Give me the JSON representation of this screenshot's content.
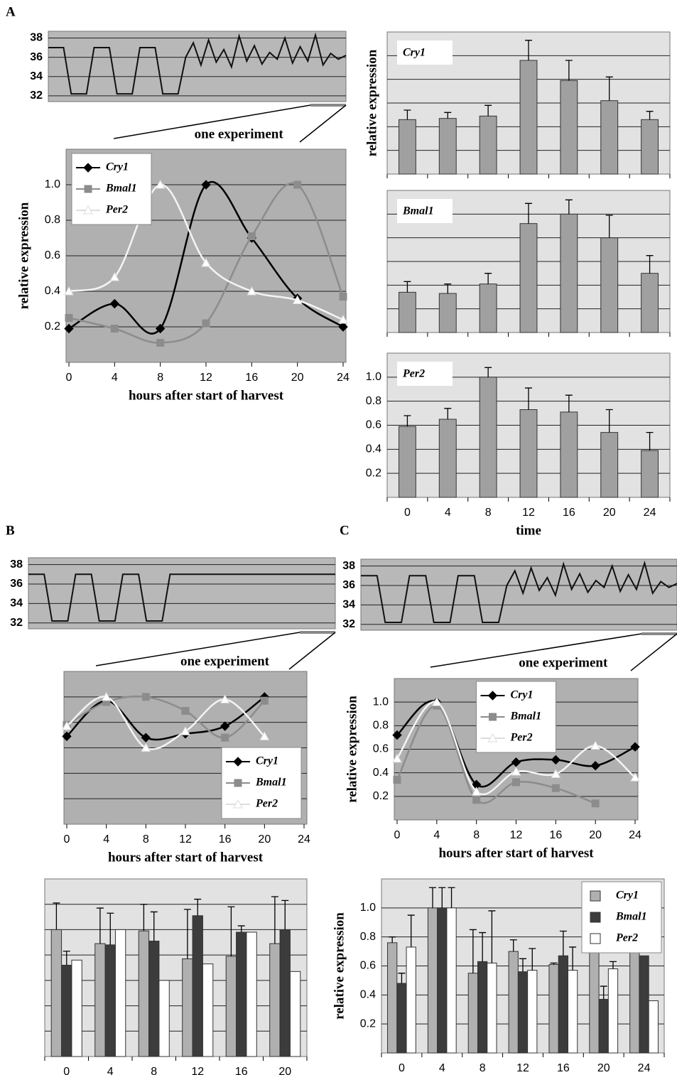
{
  "panel_labels": [
    "A",
    "B",
    "C"
  ],
  "chart_data": [
    {
      "type": "line",
      "values": [
        37,
        37,
        37,
        32.2,
        32.2,
        32.2,
        37,
        37,
        37,
        32.2,
        32.2,
        32.2,
        37,
        37,
        37,
        32.2,
        32.2,
        32.2,
        36,
        37.5,
        35.2,
        37.8,
        35.5,
        36.8,
        35,
        38.2,
        35.6,
        37.2,
        35.3,
        36.5,
        35.8,
        38,
        35.4,
        37.1,
        35.6,
        38.3,
        35.2,
        36.4,
        35.8,
        36.2
      ],
      "color": "#111111",
      "ylim": [
        31.4,
        38.7
      ],
      "yticks": [
        32,
        34,
        36,
        38
      ],
      "grid": true,
      "annotation": "one experiment"
    },
    {
      "type": "line",
      "x": [
        0,
        4,
        8,
        12,
        16,
        20,
        24
      ],
      "xlim": [
        0,
        24
      ],
      "xticks": [
        0,
        4,
        8,
        12,
        16,
        20,
        24
      ],
      "ylim": [
        0,
        1.2
      ],
      "yticks": [
        0.2,
        0.4,
        0.6,
        0.8,
        {
          "value": 1,
          "label": "1.0"
        }
      ],
      "grid": true,
      "xlabel": "hours after start of harvest",
      "ylabel": "relative expression",
      "legend": "upper left",
      "series": [
        {
          "name": "Cry1",
          "color": "#000000",
          "marker": "diamond",
          "values": [
            0.19,
            0.33,
            0.19,
            1.0,
            0.7,
            0.36,
            0.2
          ]
        },
        {
          "name": "Bmal1",
          "color": "#8c8c8c",
          "marker": "square",
          "values": [
            0.25,
            0.19,
            0.11,
            0.22,
            0.71,
            1.0,
            0.37
          ]
        },
        {
          "name": "Per2",
          "color": "#ffffff",
          "marker": "triangle",
          "values": [
            0.4,
            0.48,
            1.0,
            0.56,
            0.4,
            0.35,
            0.24
          ]
        }
      ]
    },
    {
      "type": "bar",
      "title": "Cry1",
      "categories": [
        null,
        null,
        null,
        null,
        null,
        null,
        null
      ],
      "values": [
        0.46,
        0.47,
        0.49,
        0.96,
        0.79,
        0.62,
        0.46
      ],
      "errors": [
        0.08,
        0.05,
        0.09,
        0.17,
        0.17,
        0.2,
        0.07
      ],
      "color": "#a0a0a0",
      "ylim": [
        0,
        1.2
      ],
      "yticks": [
        0.2,
        0.4,
        0.6,
        0.8,
        1
      ],
      "ytick_labels": false,
      "grid": true,
      "ylabel": "relative expression"
    },
    {
      "type": "bar",
      "title": "Bmal1",
      "categories": [
        null,
        null,
        null,
        null,
        null,
        null,
        null
      ],
      "values": [
        0.34,
        0.33,
        0.41,
        0.92,
        1.0,
        0.8,
        0.5
      ],
      "errors": [
        0.09,
        0.08,
        0.09,
        0.17,
        0.12,
        0.19,
        0.15
      ],
      "color": "#a0a0a0",
      "ylim": [
        0,
        1.2
      ],
      "yticks": [
        0.2,
        0.4,
        0.6,
        0.8,
        1
      ],
      "ytick_labels": false,
      "grid": true
    },
    {
      "type": "bar",
      "title": "Per2",
      "categories": [
        "0",
        "4",
        "8",
        "12",
        "16",
        "20",
        "24"
      ],
      "values": [
        0.59,
        0.65,
        1.0,
        0.73,
        0.71,
        0.54,
        0.39
      ],
      "errors": [
        0.09,
        0.09,
        0.08,
        0.18,
        0.14,
        0.19,
        0.15
      ],
      "color": "#a0a0a0",
      "ylim": [
        0,
        1.2
      ],
      "yticks": [
        0.2,
        0.4,
        0.6,
        0.8,
        {
          "value": 1,
          "label": "1.0"
        }
      ],
      "grid": true,
      "xlabel": "time"
    },
    {
      "type": "line",
      "values": [
        37,
        37,
        37,
        32.2,
        32.2,
        32.2,
        37,
        37,
        37,
        32.2,
        32.2,
        32.2,
        37,
        37,
        37,
        32.2,
        32.2,
        32.2,
        37,
        37,
        37,
        37,
        37,
        37,
        37,
        37,
        37,
        37,
        37,
        37,
        37,
        37,
        37,
        37,
        37,
        37,
        37,
        37,
        37,
        37
      ],
      "color": "#111111",
      "ylim": [
        31.4,
        38.7
      ],
      "yticks": [
        32,
        34,
        36,
        38
      ],
      "grid": true,
      "annotation": "one experiment"
    },
    {
      "type": "line",
      "x": [
        0,
        4,
        8,
        12,
        16,
        20
      ],
      "xlim": [
        0,
        24
      ],
      "xticks": [
        0,
        4,
        8,
        12,
        16,
        20,
        24
      ],
      "ylim": [
        0,
        1.2
      ],
      "yticks": [
        0.2,
        0.4,
        0.6,
        0.8,
        1
      ],
      "ytick_labels": false,
      "grid": true,
      "xlabel": "hours after start of harvest",
      "legend": "lower right",
      "series": [
        {
          "name": "Cry1",
          "color": "#000000",
          "marker": "diamond",
          "values": [
            0.69,
            0.97,
            0.68,
            0.71,
            0.77,
            1.0
          ]
        },
        {
          "name": "Bmal1",
          "color": "#8c8c8c",
          "marker": "square",
          "values": [
            0.78,
            0.96,
            1.0,
            0.89,
            0.68,
            0.97
          ]
        },
        {
          "name": "Per2",
          "color": "#ffffff",
          "marker": "triangle",
          "values": [
            0.77,
            1.0,
            0.6,
            0.73,
            0.98,
            0.69
          ]
        }
      ]
    },
    {
      "type": "bar",
      "categories": [
        "0",
        "4",
        "8",
        "12",
        "16",
        "20"
      ],
      "ylim": [
        0,
        1.4
      ],
      "yticks": [
        0.2,
        0.4,
        0.6,
        0.8,
        1,
        1.2
      ],
      "ytick_labels": false,
      "grid": true,
      "series": [
        {
          "name": "Cry1",
          "color": "#b0b0b0",
          "values": [
            1.0,
            0.89,
            0.99,
            0.77,
            0.79,
            0.89
          ],
          "errors": [
            0.21,
            0.28,
            0.21,
            0.39,
            0.39,
            0.37
          ]
        },
        {
          "name": "Bmal1",
          "color": "#3c3c3c",
          "values": [
            0.72,
            0.88,
            0.91,
            1.11,
            0.98,
            1.0
          ],
          "errors": [
            0.11,
            0.25,
            0.23,
            0.13,
            0.05,
            0.23
          ]
        },
        {
          "name": "Per2",
          "color": "#ffffff",
          "values": [
            0.76,
            1.0,
            0.6,
            0.73,
            0.98,
            0.67
          ]
        }
      ]
    },
    {
      "type": "line",
      "values": [
        37,
        37,
        37,
        32.2,
        32.2,
        32.2,
        37,
        37,
        37,
        32.2,
        32.2,
        32.2,
        37,
        37,
        37,
        32.2,
        32.2,
        32.2,
        36,
        37.5,
        35.2,
        37.8,
        35.5,
        36.8,
        35,
        38.2,
        35.6,
        37.2,
        35.3,
        36.5,
        35.8,
        38,
        35.4,
        37.1,
        35.6,
        38.3,
        35.2,
        36.4,
        35.8,
        36.2
      ],
      "color": "#111111",
      "ylim": [
        31.4,
        38.7
      ],
      "yticks": [
        32,
        34,
        36,
        38
      ],
      "grid": true,
      "annotation": "one experiment"
    },
    {
      "type": "line",
      "x": [
        0,
        4,
        8,
        12,
        16,
        20,
        24
      ],
      "xlim": [
        0,
        24
      ],
      "xticks": [
        0,
        4,
        8,
        12,
        16,
        20,
        24
      ],
      "ylim": [
        0,
        1.2
      ],
      "yticks": [
        0.2,
        0.4,
        0.6,
        0.8,
        {
          "value": 1,
          "label": "1.0"
        }
      ],
      "grid": true,
      "xlabel": "hours after start of harvest",
      "ylabel": "relative expression",
      "legend": "upper center",
      "series": [
        {
          "name": "Cry1",
          "color": "#000000",
          "marker": "diamond",
          "values": [
            0.72,
            1.0,
            0.3,
            0.49,
            0.51,
            0.46,
            0.62
          ]
        },
        {
          "name": "Bmal1",
          "color": "#8c8c8c",
          "marker": "square",
          "values": [
            0.34,
            0.97,
            0.17,
            0.32,
            0.27,
            0.14,
            null
          ]
        },
        {
          "name": "Per2",
          "color": "#ffffff",
          "marker": "triangle",
          "values": [
            0.52,
            1.0,
            0.24,
            0.41,
            0.39,
            0.63,
            0.36
          ]
        }
      ]
    },
    {
      "type": "bar",
      "categories": [
        "0",
        "4",
        "8",
        "12",
        "16",
        "20",
        "24"
      ],
      "ylim": [
        0,
        1.2
      ],
      "yticks": [
        0.2,
        0.4,
        0.6,
        0.8,
        {
          "value": 1,
          "label": "1.0"
        }
      ],
      "grid": true,
      "ylabel": "relative expression",
      "legend": "upper right",
      "series": [
        {
          "name": "Cry1",
          "color": "#b0b0b0",
          "values": [
            0.76,
            1.0,
            0.55,
            0.7,
            0.61,
            0.74,
            0.71
          ],
          "errors": [
            0.04,
            0.14,
            0.3,
            0.08,
            0.01,
            0.17,
            null
          ]
        },
        {
          "name": "Bmal1",
          "color": "#3c3c3c",
          "values": [
            0.48,
            1.0,
            0.63,
            0.56,
            0.67,
            0.37,
            0.67
          ],
          "errors": [
            0.07,
            0.14,
            0.2,
            0.09,
            0.17,
            0.09,
            null
          ]
        },
        {
          "name": "Per2",
          "color": "#ffffff",
          "values": [
            0.73,
            1.0,
            0.62,
            0.57,
            0.57,
            0.58,
            0.36
          ],
          "errors": [
            0.22,
            0.14,
            0.36,
            0.15,
            0.16,
            0.05,
            null
          ]
        }
      ]
    }
  ]
}
